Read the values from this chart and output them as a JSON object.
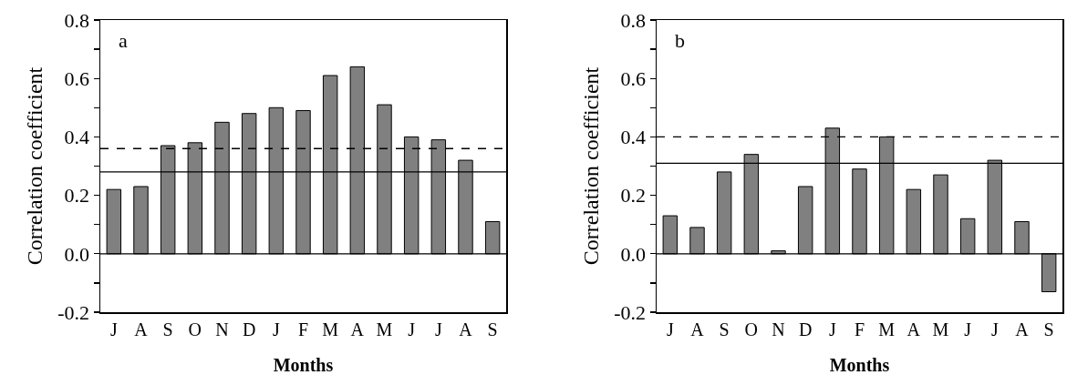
{
  "chart_data": [
    {
      "type": "bar",
      "annotations": [
        "a"
      ],
      "xlabel": "Months",
      "ylabel": "Correlation coefficient",
      "categories": [
        "J",
        "A",
        "S",
        "O",
        "N",
        "D",
        "J",
        "F",
        "M",
        "A",
        "M",
        "J",
        "J",
        "A",
        "S"
      ],
      "series": [
        {
          "color": "#808080",
          "values": [
            0.22,
            0.23,
            0.37,
            0.38,
            0.45,
            0.48,
            0.5,
            0.49,
            0.61,
            0.64,
            0.51,
            0.4,
            0.39,
            0.32,
            0.11
          ]
        }
      ],
      "ylim": [
        -0.2,
        0.8
      ],
      "yticks": [
        -0.2,
        {
          "value": -0.1,
          "label": null
        },
        {
          "value": 0.0,
          "label": "0.0"
        },
        {
          "value": 0.1,
          "label": null
        },
        0.2,
        {
          "value": 0.3,
          "label": null
        },
        0.4,
        {
          "value": 0.5,
          "label": null
        },
        0.6,
        {
          "value": 0.7,
          "label": null
        },
        0.8
      ],
      "ref_lines": [
        {
          "axis": "y",
          "value": 0.36,
          "color": "#000000",
          "line_style": "dashed"
        },
        {
          "axis": "y",
          "value": 0.28,
          "color": "#000000",
          "line_style": "solid"
        },
        {
          "axis": "y",
          "value": 0,
          "color": "#000000",
          "line_style": "solid"
        }
      ],
      "grid": false
    },
    {
      "type": "bar",
      "annotations": [
        "b"
      ],
      "xlabel": "Months",
      "ylabel": "Correlation coefficient",
      "categories": [
        "J",
        "A",
        "S",
        "O",
        "N",
        "D",
        "J",
        "F",
        "M",
        "A",
        "M",
        "J",
        "J",
        "A",
        "S"
      ],
      "series": [
        {
          "color": "#808080",
          "values": [
            0.13,
            0.09,
            0.28,
            0.34,
            0.01,
            0.23,
            0.43,
            0.29,
            0.4,
            0.22,
            0.27,
            0.12,
            0.32,
            0.11,
            -0.13
          ]
        }
      ],
      "ylim": [
        -0.2,
        0.8
      ],
      "yticks": [
        -0.2,
        {
          "value": -0.1,
          "label": null
        },
        {
          "value": 0.0,
          "label": "0.0"
        },
        {
          "value": 0.1,
          "label": null
        },
        0.2,
        {
          "value": 0.3,
          "label": null
        },
        0.4,
        {
          "value": 0.5,
          "label": null
        },
        0.6,
        {
          "value": 0.7,
          "label": null
        },
        0.8
      ],
      "ref_lines": [
        {
          "axis": "y",
          "value": 0.4,
          "color": "#000000",
          "line_style": "dashed"
        },
        {
          "axis": "y",
          "value": 0.31,
          "color": "#000000",
          "line_style": "solid"
        },
        {
          "axis": "y",
          "value": 0,
          "color": "#000000",
          "line_style": "solid"
        }
      ],
      "grid": false
    }
  ]
}
